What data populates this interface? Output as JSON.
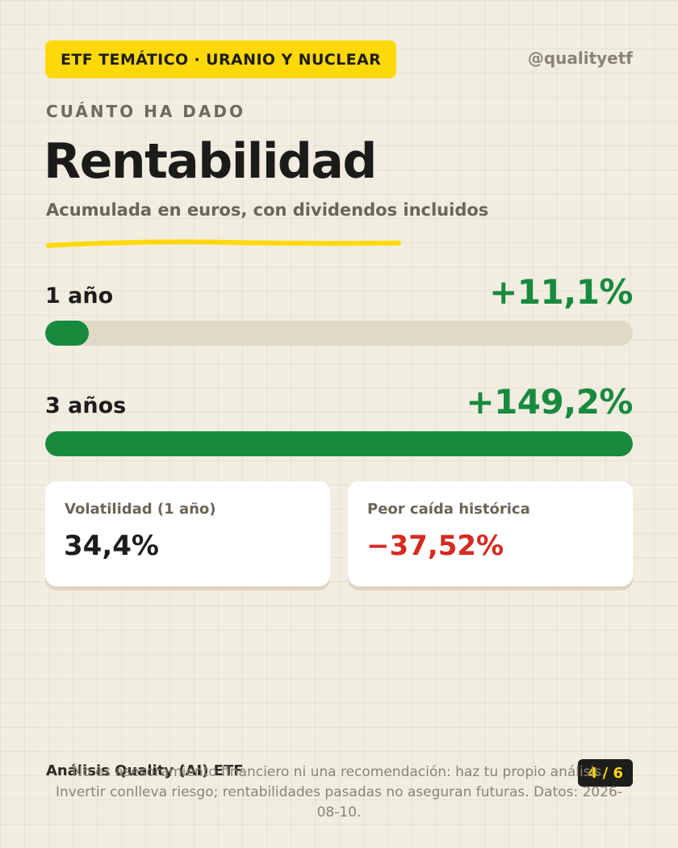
{
  "header": {
    "tag": "ETF TEMÁTICO · URANIO Y NUCLEAR",
    "handle": "@qualityetf"
  },
  "hero": {
    "eyebrow": "CUÁNTO HA DADO",
    "title": "Rentabilidad",
    "subtitle": "Acumulada en euros, con dividendos incluidos"
  },
  "returns": [
    {
      "label": "1 año",
      "value": "+11,1%",
      "bar_fraction": 0.074
    },
    {
      "label": "3 años",
      "value": "+149,2%",
      "bar_fraction": 1.0
    }
  ],
  "stats": [
    {
      "label": "Volatilidad (1 año)",
      "value": "34,4%"
    },
    {
      "label": "Peor caída histórica",
      "value": "−37,52%"
    }
  ],
  "footer": {
    "brand": "Análisis Quality (AI) ETF",
    "page": "4 / 6",
    "disclaimer": "No es asesoramiento financiero ni una recomendación: haz tu propio análisis. Invertir conlleva riesgo; rentabilidades pasadas no aseguran futuras. Datos: 2026-08-10."
  },
  "colors": {
    "accent": "#ffd80a",
    "positive": "#178a3e",
    "negative": "#d62a20",
    "background": "#f2ede1"
  }
}
